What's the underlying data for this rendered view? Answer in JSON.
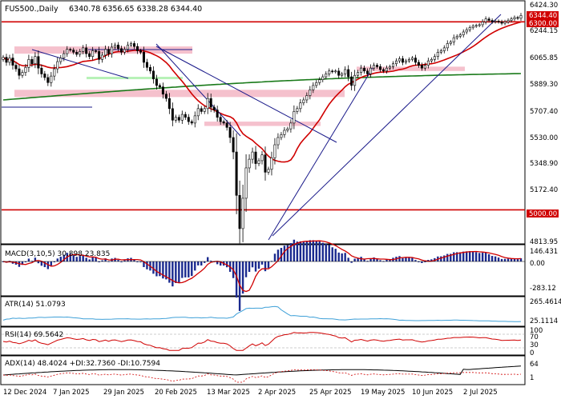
{
  "colors": {
    "candle_up": "#ffffff",
    "candle_down": "#000000",
    "candle_outline": "#000000",
    "sma_fast": "#d00000",
    "sma_slow": "#1a7a1a",
    "resistance": "#d00000",
    "zone_pink": "#f3b6c4",
    "zone_green": "#b7f2b7",
    "trendline": "#1a1a8a",
    "macd_hist": "#1a2a8f",
    "macd_signal": "#d00000",
    "atr": "#3ea0d8",
    "rsi": "#d00000",
    "adx": "#000000",
    "panel_border": "#000000",
    "badge_bg": "#d00000",
    "badge_text": "#ffffff"
  },
  "chart_data": {
    "type": "candlestick",
    "title": "FUS500.,Daily",
    "ohlc_label": "6340.78 6356.65 6338.28 6344.40",
    "price_scale": {
      "ylim": [
        4770,
        6440
      ],
      "ticks": [
        "6424.30",
        "6244.15",
        "6065.85",
        "5889.30",
        "5707.40",
        "5530.00",
        "5348.90",
        "5172.40",
        "4813.95"
      ],
      "badges": [
        "6344.40",
        "6300.00",
        "5000.00"
      ]
    },
    "x_labels": [
      "12 Dec 2024",
      "7 Jan 2025",
      "29 Jan 2025",
      "20 Feb 2025",
      "13 Mar 2025",
      "2 Apr 2025",
      "25 Apr 2025",
      "19 May 2025",
      "10 Jun 2025",
      "2 Jul 2025"
    ],
    "closes": [
      6055,
      6020,
      6050,
      6000,
      5975,
      5930,
      5950,
      5985,
      6040,
      6010,
      6060,
      5980,
      5940,
      5915,
      5880,
      5925,
      5975,
      6025,
      6050,
      6080,
      6110,
      6105,
      6090,
      6075,
      6095,
      6120,
      6080,
      6060,
      6100,
      6095,
      6040,
      6070,
      6110,
      6080,
      6125,
      6140,
      6115,
      6090,
      6110,
      6140,
      6150,
      6130,
      6100,
      6090,
      6020,
      5985,
      5960,
      5905,
      5860,
      5850,
      5800,
      5770,
      5700,
      5620,
      5640,
      5620,
      5660,
      5640,
      5610,
      5600,
      5650,
      5700,
      5680,
      5700,
      5770,
      5710,
      5690,
      5640,
      5610,
      5600,
      5570,
      5500,
      5400,
      5100,
      4870,
      5080,
      5290,
      5350,
      5400,
      5320,
      5340,
      5380,
      5260,
      5280,
      5360,
      5450,
      5500,
      5520,
      5550,
      5560,
      5600,
      5680,
      5700,
      5740,
      5760,
      5790,
      5830,
      5860,
      5880,
      5900,
      5920,
      5940,
      5960,
      5955,
      5960,
      5930,
      5940,
      5970,
      5920,
      5860,
      5930,
      5950,
      5980,
      5960,
      5940,
      5980,
      6000,
      5990,
      5970,
      5960,
      5980,
      5990,
      6010,
      6030,
      6045,
      6020,
      6030,
      6040,
      6050,
      6020,
      6000,
      5980,
      6000,
      6030,
      6040,
      6060,
      6090,
      6100,
      6120,
      6150,
      6160,
      6190,
      6200,
      6210,
      6230,
      6245,
      6260,
      6270,
      6275,
      6280,
      6300,
      6320,
      6310,
      6300,
      6305,
      6300,
      6290,
      6300,
      6310,
      6320,
      6330,
      6325,
      6344
    ],
    "indicators": {
      "sma_fast": {
        "label": "",
        "period": 50
      },
      "sma_slow": {
        "label": "",
        "period": 200
      },
      "resistance_levels": [
        6300.0,
        5000.0
      ],
      "pink_zones": [
        [
          6080,
          6130
        ],
        [
          5780,
          5830
        ],
        [
          5580,
          5610
        ],
        [
          5960,
          5990
        ]
      ],
      "green_zone": [
        5905,
        5920
      ]
    },
    "subpanels": [
      {
        "name": "MACD",
        "label": "MACD(3,10,5) 30.898 23.835",
        "ticks": [
          "146.431",
          "0.00",
          "-283.12"
        ]
      },
      {
        "name": "ATR",
        "label": "ATR(14) 51.0793",
        "ticks": [
          "265.4614",
          "25.1114"
        ]
      },
      {
        "name": "RSI",
        "label": "RSI(14) 69.5642",
        "ticks": [
          "100",
          "70",
          "30",
          "0"
        ]
      },
      {
        "name": "ADX",
        "label": "ADX(14) 48.4024 +DI:32.7360 -DI:10.7594",
        "ticks": [
          "64",
          "1"
        ]
      }
    ]
  }
}
